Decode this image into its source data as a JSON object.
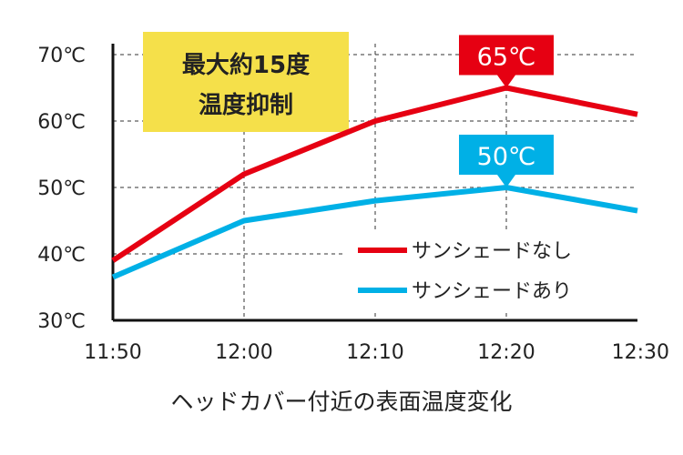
{
  "chart_data": {
    "type": "line",
    "categories": [
      "11:50",
      "12:00",
      "12:10",
      "12:20",
      "12:30"
    ],
    "series": [
      {
        "name": "サンシェードなし",
        "color": "#e60012",
        "values": [
          39,
          52,
          60,
          65,
          61
        ]
      },
      {
        "name": "サンシェードあり",
        "color": "#00b0e6",
        "values": [
          36.5,
          45,
          48,
          50,
          46.5
        ]
      }
    ],
    "y_ticks": [
      "30℃",
      "40℃",
      "50℃",
      "60℃",
      "70℃"
    ],
    "ylim": [
      30,
      70
    ],
    "xlabel": "ヘッドカバー付近の表面温度変化",
    "ylabel": "",
    "grid": "dashed",
    "legend_position": "bottom-right",
    "annotation": {
      "lines": [
        "最大約15度",
        "温度抑制"
      ],
      "background": "#f5e04a"
    },
    "callouts": [
      {
        "text": "65℃",
        "series_index": 0,
        "point_index": 3
      },
      {
        "text": "50℃",
        "series_index": 1,
        "point_index": 3
      }
    ]
  }
}
